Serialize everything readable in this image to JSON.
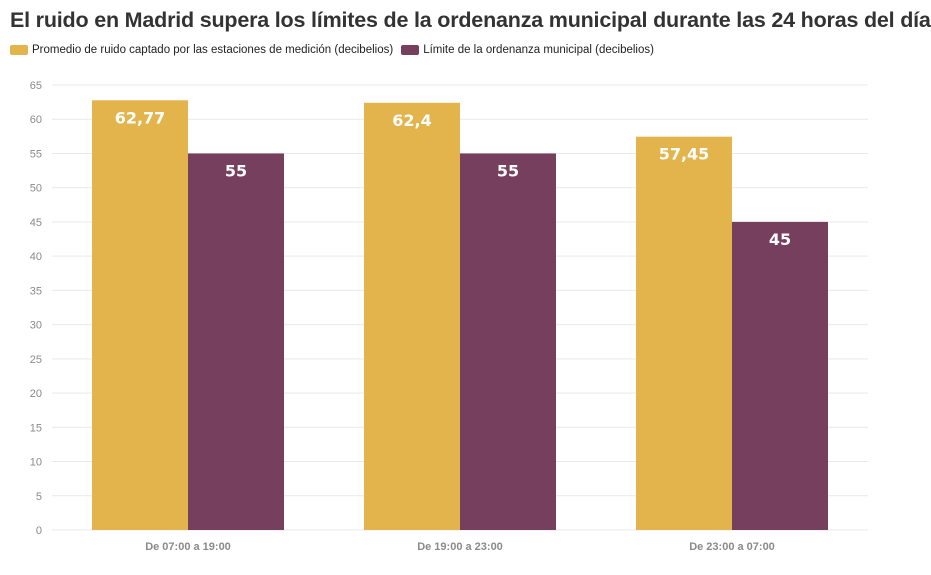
{
  "title": "El ruido en Madrid supera los límites de la ordenanza municipal durante las 24 horas del día",
  "colors": {
    "series_1": "#e4b44c",
    "series_2": "#773f5e",
    "grid": "#e9e9e9",
    "axis_text": "#8a8a8a"
  },
  "chart_data": {
    "type": "bar",
    "title": "El ruido en Madrid supera los límites de la ordenanza municipal durante las 24 horas del día",
    "categories": [
      "De 07:00 a 19:00",
      "De 19:00 a 23:00",
      "De 23:00 a 07:00"
    ],
    "series": [
      {
        "name": "Promedio de ruido captado por las estaciones de medición (decibelios)",
        "values": [
          62.77,
          62.4,
          57.45
        ]
      },
      {
        "name": "Límite de la ordenanza municipal (decibelios)",
        "values": [
          55,
          55,
          45
        ]
      }
    ],
    "data_labels": [
      [
        "62,77",
        "62,4",
        "57,45"
      ],
      [
        "55",
        "55",
        "45"
      ]
    ],
    "yticks": [
      0,
      5,
      10,
      15,
      20,
      25,
      30,
      35,
      40,
      45,
      50,
      55,
      60,
      65
    ],
    "ylim": [
      0,
      65
    ],
    "xlabel": "",
    "ylabel": "",
    "grid": true,
    "legend_position": "top-left"
  }
}
